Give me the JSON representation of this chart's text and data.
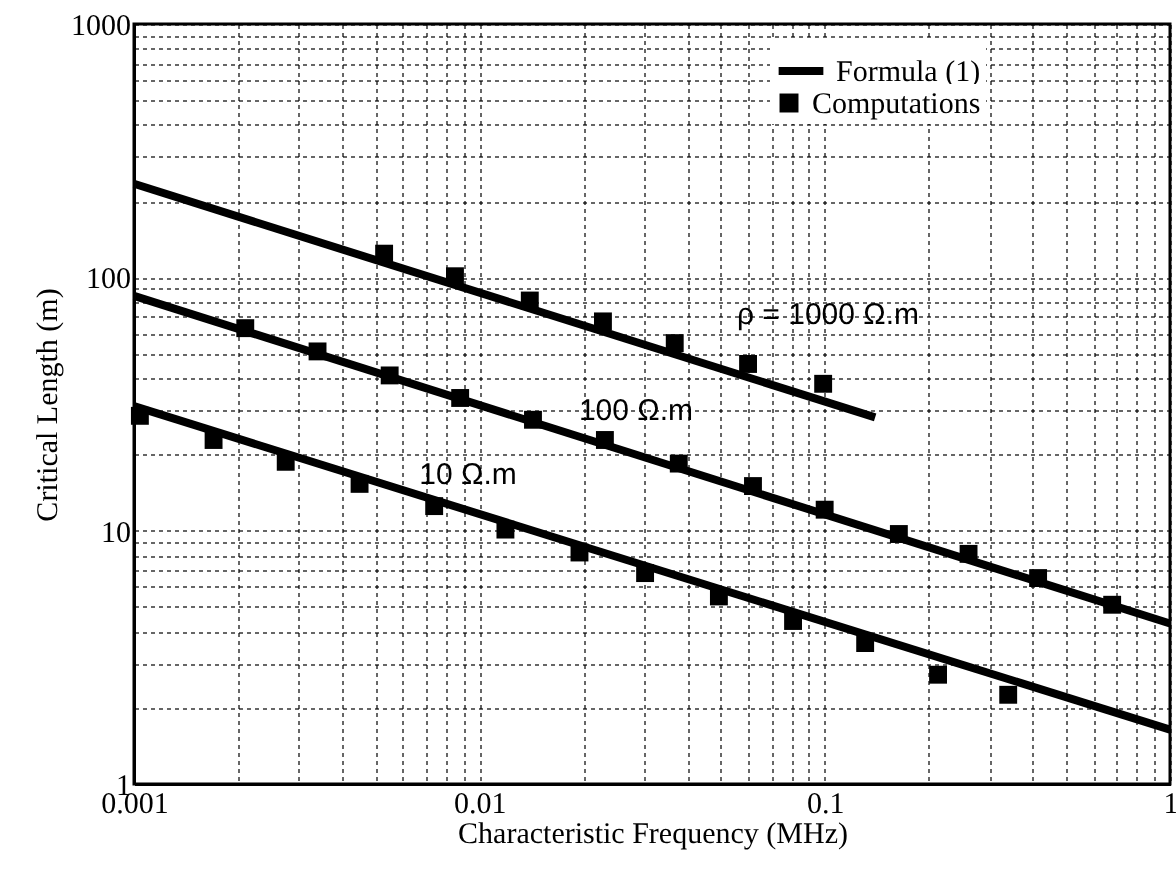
{
  "chart_data": {
    "type": "line",
    "xlabel": "Characteristic Frequency (MHz)",
    "ylabel": "Critical Length (m)",
    "log": "xy",
    "xlim": [
      0.001,
      1
    ],
    "ylim": [
      1,
      1000
    ],
    "xticks": [
      0.001,
      {
        "value": 0.002,
        "label": null
      },
      {
        "value": 0.003,
        "label": null
      },
      {
        "value": 0.004,
        "label": null
      },
      {
        "value": 0.005,
        "label": null
      },
      {
        "value": 0.006,
        "label": null
      },
      {
        "value": 0.007,
        "label": null
      },
      {
        "value": 0.008,
        "label": null
      },
      {
        "value": 0.009,
        "label": null
      },
      0.01,
      {
        "value": 0.02,
        "label": null
      },
      {
        "value": 0.03,
        "label": null
      },
      {
        "value": 0.04,
        "label": null
      },
      {
        "value": 0.05,
        "label": null
      },
      {
        "value": 0.06,
        "label": null
      },
      {
        "value": 0.07,
        "label": null
      },
      {
        "value": 0.08,
        "label": null
      },
      {
        "value": 0.09,
        "label": null
      },
      0.1,
      {
        "value": 0.2,
        "label": null
      },
      {
        "value": 0.3,
        "label": null
      },
      {
        "value": 0.4,
        "label": null
      },
      {
        "value": 0.5,
        "label": null
      },
      {
        "value": 0.6,
        "label": null
      },
      {
        "value": 0.7,
        "label": null
      },
      {
        "value": 0.8,
        "label": null
      },
      {
        "value": 0.9,
        "label": null
      },
      1
    ],
    "yticks": [
      1,
      {
        "value": 2,
        "label": null
      },
      {
        "value": 3,
        "label": null
      },
      {
        "value": 4,
        "label": null
      },
      {
        "value": 5,
        "label": null
      },
      {
        "value": 6,
        "label": null
      },
      {
        "value": 7,
        "label": null
      },
      {
        "value": 8,
        "label": null
      },
      {
        "value": 9,
        "label": null
      },
      10,
      {
        "value": 20,
        "label": null
      },
      {
        "value": 30,
        "label": null
      },
      {
        "value": 40,
        "label": null
      },
      {
        "value": 50,
        "label": null
      },
      {
        "value": 60,
        "label": null
      },
      {
        "value": 70,
        "label": null
      },
      {
        "value": 80,
        "label": null
      },
      {
        "value": 90,
        "label": null
      },
      100,
      {
        "value": 200,
        "label": null
      },
      {
        "value": 300,
        "label": null
      },
      {
        "value": 400,
        "label": null
      },
      {
        "value": 500,
        "label": null
      },
      {
        "value": 600,
        "label": null
      },
      {
        "value": 700,
        "label": null
      },
      {
        "value": 800,
        "label": null
      },
      {
        "value": 900,
        "label": null
      },
      1000
    ],
    "grid": true,
    "legend": "top right",
    "line_style": "solid",
    "series": [
      {
        "name": "Formula (1)",
        "color": "#000000",
        "x": [
          0.001,
          0.14
        ],
        "values": [
          234,
          28
        ]
      },
      {
        "color": "#000000",
        "x": [
          0.001,
          1
        ],
        "values": [
          84.5,
          4.3
        ]
      },
      {
        "color": "#000000",
        "x": [
          0.001,
          1
        ],
        "values": [
          31,
          1.64
        ]
      },
      {
        "name": "Computations",
        "type": "scatter",
        "marker": "square",
        "color": "#000000",
        "x": [
          0.0053,
          0.0085,
          0.014,
          0.0228,
          0.0368,
          0.06,
          0.099
        ],
        "values": [
          124,
          101,
          81,
          67,
          55,
          45.5,
          38
        ]
      },
      {
        "type": "scatter",
        "marker": "square",
        "color": "#000000",
        "x": [
          0.0021,
          0.0034,
          0.0055,
          0.0088,
          0.0143,
          0.0231,
          0.0378,
          0.062,
          0.1,
          0.164,
          0.261,
          0.415,
          0.68
        ],
        "values": [
          63,
          51,
          41,
          33.4,
          27.4,
          22.8,
          18.4,
          15,
          12.1,
          9.7,
          8.1,
          6.5,
          5.1
        ]
      },
      {
        "type": "scatter",
        "marker": "square",
        "color": "#000000",
        "x": [
          0.00104,
          0.0017,
          0.00275,
          0.0045,
          0.0074,
          0.0119,
          0.0195,
          0.0302,
          0.0494,
          0.081,
          0.131,
          0.213,
          0.34
        ],
        "values": [
          28.4,
          22.8,
          18.7,
          15.3,
          12.5,
          10.1,
          8.2,
          6.8,
          5.5,
          4.4,
          3.6,
          2.7,
          2.25
        ]
      }
    ],
    "annotations": [
      "ρ = 1000 Ω.m",
      "100 Ω.m",
      "10 Ω.m"
    ]
  }
}
